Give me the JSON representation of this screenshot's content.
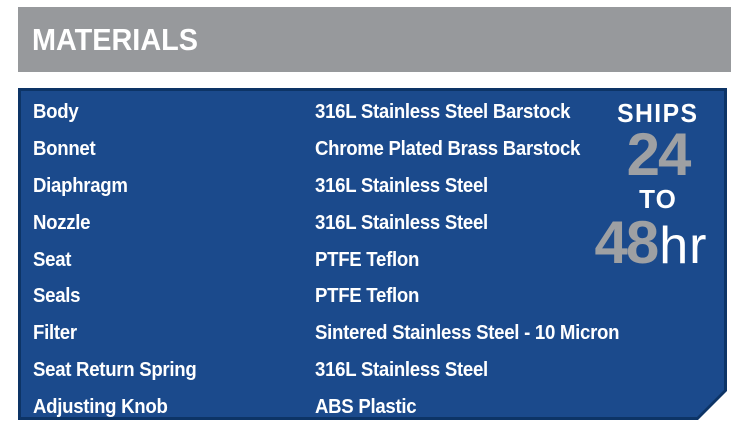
{
  "header": {
    "title": "MATERIALS"
  },
  "table": {
    "rows": [
      {
        "label": "Body",
        "value": "316L Stainless Steel Barstock"
      },
      {
        "label": "Bonnet",
        "value": "Chrome Plated Brass Barstock"
      },
      {
        "label": "Diaphragm",
        "value": "316L Stainless Steel"
      },
      {
        "label": "Nozzle",
        "value": "316L Stainless Steel"
      },
      {
        "label": "Seat",
        "value": "PTFE Teflon"
      },
      {
        "label": "Seals",
        "value": "PTFE Teflon"
      },
      {
        "label": "Filter",
        "value": "Sintered Stainless Steel - 10 Micron"
      },
      {
        "label": "Seat Return Spring",
        "value": "316L Stainless Steel"
      },
      {
        "label": "Adjusting Knob",
        "value": "ABS Plastic"
      }
    ]
  },
  "badge": {
    "ships": "SHIPS",
    "num1": "24",
    "to": "TO",
    "num2": "48",
    "unit": "hr"
  },
  "colors": {
    "header_gray": "#97999C",
    "panel_blue": "#1B4A8C",
    "panel_border_navy": "#0D3466",
    "badge_number_gray": "#9EA0A3",
    "text_white": "#FFFFFF"
  }
}
